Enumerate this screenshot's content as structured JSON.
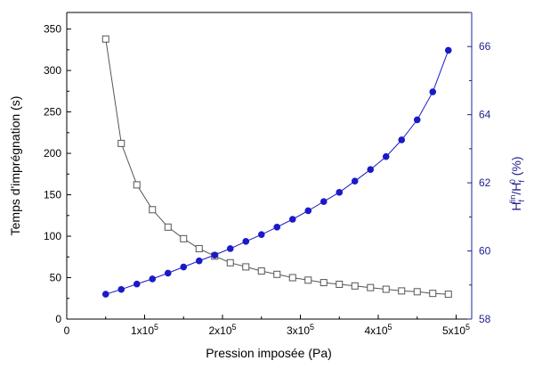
{
  "chart_data": {
    "type": "line",
    "xlabel": "Pression imposée (Pa)",
    "ylabel_left": "Temps d'imprégnation (s)",
    "ylabel_right": {
      "main": "H",
      "sub1": "f",
      "sup1": "fin",
      "slash": "/H",
      "sub2": "f",
      "sup2": "0",
      "unit": " (%)"
    },
    "xlim": [
      0,
      520000
    ],
    "ylim_left": [
      0,
      370
    ],
    "ylim_right": [
      58,
      67
    ],
    "x_ticks": [
      {
        "value": 0,
        "label": "0",
        "mant": "",
        "exp": ""
      },
      {
        "value": 100000,
        "label": "",
        "mant": "1x10",
        "exp": "5"
      },
      {
        "value": 200000,
        "label": "",
        "mant": "2x10",
        "exp": "5"
      },
      {
        "value": 300000,
        "label": "",
        "mant": "3x10",
        "exp": "5"
      },
      {
        "value": 400000,
        "label": "",
        "mant": "4x10",
        "exp": "5"
      },
      {
        "value": 500000,
        "label": "",
        "mant": "5x10",
        "exp": "5"
      }
    ],
    "y_left_ticks": [
      "0",
      "50",
      "100",
      "150",
      "200",
      "250",
      "300",
      "350"
    ],
    "y_right_ticks": [
      "58",
      "60",
      "62",
      "64",
      "66"
    ],
    "colors": {
      "left_series": "#555555",
      "right_series": "#1a1ac8",
      "right_axis": "#22228f"
    },
    "series": [
      {
        "axis": "left",
        "marker": "open-square",
        "x": [
          50000,
          70000,
          90000,
          110000,
          130000,
          150000,
          170000,
          190000,
          210000,
          230000,
          250000,
          270000,
          290000,
          310000,
          330000,
          350000,
          370000,
          390000,
          410000,
          430000,
          450000,
          470000,
          490000
        ],
        "y": [
          338,
          212,
          162,
          132,
          111,
          97,
          85,
          76,
          68,
          63,
          58,
          54,
          50,
          47,
          44,
          42,
          40,
          38,
          36,
          34,
          33,
          31,
          30
        ]
      },
      {
        "axis": "right",
        "marker": "filled-circle",
        "x": [
          50000,
          70000,
          90000,
          110000,
          130000,
          150000,
          170000,
          190000,
          210000,
          230000,
          250000,
          270000,
          290000,
          310000,
          330000,
          350000,
          370000,
          390000,
          410000,
          430000,
          450000,
          470000,
          490000
        ],
        "y": [
          58.73,
          58.87,
          59.03,
          59.18,
          59.35,
          59.53,
          59.71,
          59.88,
          60.07,
          60.28,
          60.48,
          60.7,
          60.93,
          61.18,
          61.45,
          61.72,
          62.05,
          62.39,
          62.77,
          63.26,
          63.85,
          64.67,
          65.89
        ]
      }
    ]
  }
}
